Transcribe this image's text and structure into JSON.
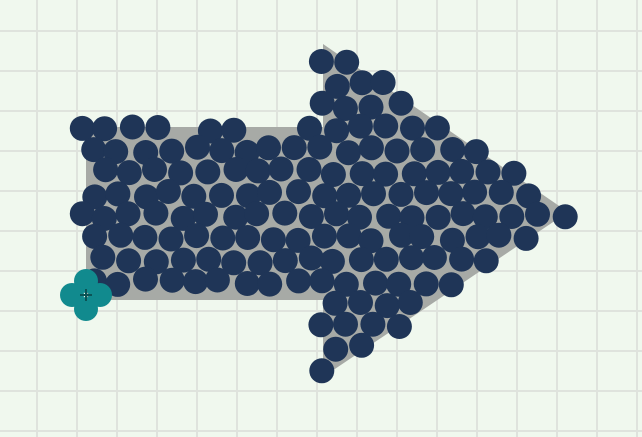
{
  "board": {
    "grid": "on",
    "colors": {
      "background": "#f0f8ee",
      "grid_line": "#dfe3dd",
      "arrow": "#a7aaa6",
      "ball": "#1f3557",
      "spawner": "#118a8e"
    },
    "shape": "arrow-pointing-right",
    "ball_count": 150,
    "spawner_icon": "four-petal-clover-icon"
  }
}
